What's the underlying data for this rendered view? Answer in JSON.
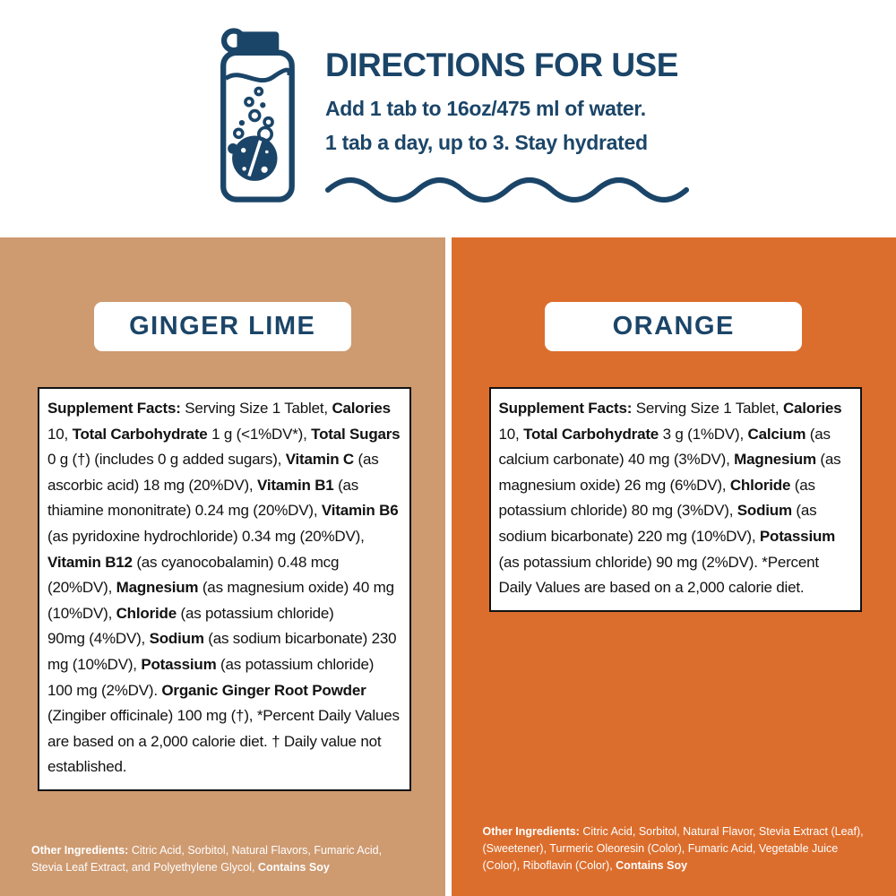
{
  "colors": {
    "navy": "#1B4568",
    "tan": "#CE9A70",
    "orange": "#DC6E2D",
    "ink": "#121212",
    "white": "#FFFFFF"
  },
  "directions": {
    "title": "DIRECTIONS FOR USE",
    "line1": "Add 1 tab to 16oz/475 ml of water.",
    "line2": "1 tab a day, up to 3. Stay hydrated",
    "bottle_icon": "bottle-with-dissolving-tablet-icon",
    "wave_icon": "wave-divider-icon"
  },
  "flavors": [
    {
      "name": "GINGER LIME",
      "facts_segments": [
        {
          "t": "Supplement Facts:",
          "b": true
        },
        {
          "t": " Serving Size 1 Tablet, "
        },
        {
          "t": "Calories",
          "b": true
        },
        {
          "t": " 10, "
        },
        {
          "t": "Total Carbohydrate",
          "b": true
        },
        {
          "t": " 1 g (<1%DV*), "
        },
        {
          "t": "Total Sugars",
          "b": true
        },
        {
          "t": " 0 g (†) (includes 0 g added sugars), "
        },
        {
          "t": "Vitamin C",
          "b": true
        },
        {
          "t": " (as ascorbic acid) 18 mg (20%DV), "
        },
        {
          "t": "Vitamin B1",
          "b": true
        },
        {
          "t": " (as thiamine mononitrate) 0.24 mg (20%DV), "
        },
        {
          "t": "Vitamin B6",
          "b": true
        },
        {
          "t": " (as pyridoxine hydrochloride) 0.34 mg (20%DV), "
        },
        {
          "t": "Vitamin B12",
          "b": true
        },
        {
          "t": " (as cyanocobalamin) 0.48 mcg (20%DV), "
        },
        {
          "t": "Magnesium",
          "b": true
        },
        {
          "t": " (as magnesium oxide) 40 mg (10%DV), "
        },
        {
          "t": "Chloride",
          "b": true
        },
        {
          "t": " (as potassium chloride)"
        },
        {
          "br": true
        },
        {
          "t": "90mg (4%DV), "
        },
        {
          "t": "Sodium",
          "b": true
        },
        {
          "t": " (as sodium bicarbonate) 230 mg (10%DV), "
        },
        {
          "t": "Potassium",
          "b": true
        },
        {
          "t": " (as potassium chloride) 100 mg (2%DV). "
        },
        {
          "t": "Organic Ginger Root Powder",
          "b": true
        },
        {
          "t": " (Zingiber officinale) 100 mg (†), *Percent Daily Values are based on a 2,000 calorie diet. † Daily value not established."
        }
      ],
      "other_segments": [
        {
          "t": "Other Ingredients:",
          "b": true
        },
        {
          "t": " Citric Acid, Sorbitol, Natural Flavors, Fumaric Acid, Stevia Leaf Extract, and Polyethylene Glycol, "
        },
        {
          "t": "Contains Soy",
          "b": true
        }
      ]
    },
    {
      "name": "ORANGE",
      "facts_segments": [
        {
          "t": "Supplement Facts:",
          "b": true
        },
        {
          "t": " Serving Size 1 Tablet, "
        },
        {
          "t": "Calories",
          "b": true
        },
        {
          "t": " 10, "
        },
        {
          "t": "Total Carbohydrate",
          "b": true
        },
        {
          "t": " 3 g (1%DV), "
        },
        {
          "t": "Calcium",
          "b": true
        },
        {
          "t": " (as calcium carbonate) 40 mg (3%DV), "
        },
        {
          "t": "Magnesium",
          "b": true
        },
        {
          "t": " (as magnesium oxide) 26 mg (6%DV), "
        },
        {
          "t": "Chloride",
          "b": true
        },
        {
          "t": " (as potassium chloride) 80 mg (3%DV), "
        },
        {
          "t": "Sodium",
          "b": true
        },
        {
          "t": " (as sodium bicarbonate) 220 mg (10%DV), "
        },
        {
          "t": "Potassium",
          "b": true
        },
        {
          "t": " (as potassium chloride) 90 mg (2%DV). *Percent Daily Values are based on a 2,000 calorie diet."
        }
      ],
      "other_segments": [
        {
          "t": "Other Ingredients:",
          "b": true
        },
        {
          "t": " Citric Acid, Sorbitol, Natural Flavor, Stevia Extract (Leaf), (Sweetener), Turmeric Oleoresin (Color), Fumaric Acid, Vegetable Juice (Color), Riboflavin (Color), "
        },
        {
          "t": "Contains Soy",
          "b": true
        }
      ]
    }
  ]
}
